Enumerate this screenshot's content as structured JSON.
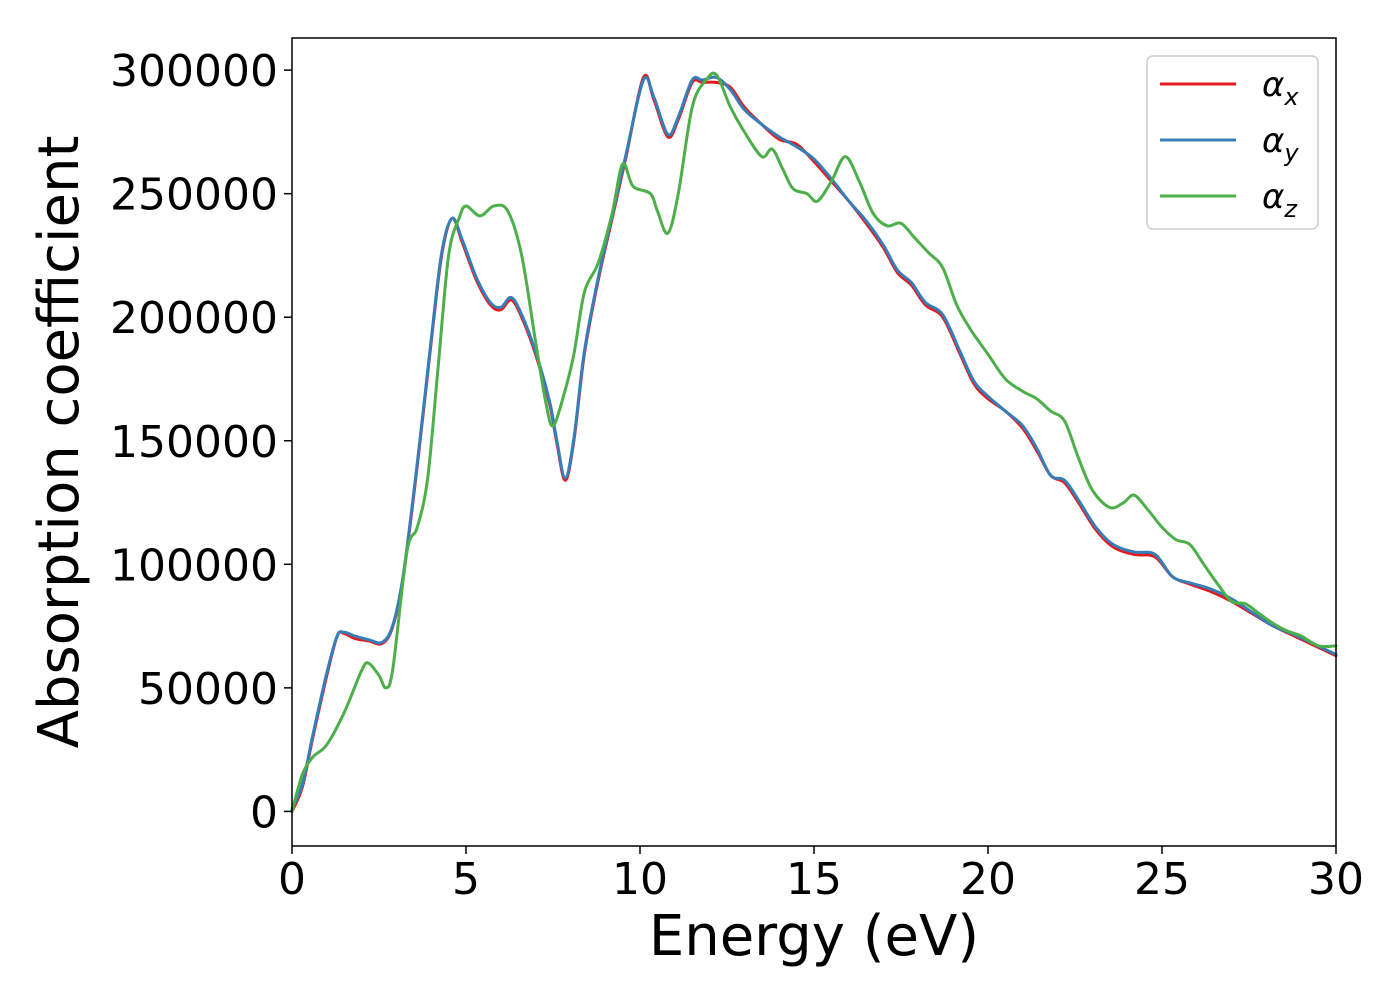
{
  "chart_data": {
    "type": "line",
    "title": "",
    "xlabel": "Energy (eV)",
    "ylabel": "Absorption coefficient",
    "xlim": [
      0,
      30
    ],
    "ylim": [
      -14000,
      313000
    ],
    "x_ticks": [
      0,
      5,
      10,
      15,
      20,
      25,
      30
    ],
    "x_tick_labels": [
      "0",
      "5",
      "10",
      "15",
      "20",
      "25",
      "30"
    ],
    "y_ticks": [
      0,
      50000,
      100000,
      150000,
      200000,
      250000,
      300000
    ],
    "y_tick_labels": [
      "0",
      "50000",
      "100000",
      "150000",
      "200000",
      "250000",
      "300000"
    ],
    "grid": false,
    "legend": "top-right",
    "series": [
      {
        "name": "α",
        "sub": "x",
        "color": "#e41a1c",
        "points": [
          [
            0,
            0
          ],
          [
            0.3,
            10000
          ],
          [
            0.6,
            30000
          ],
          [
            1,
            55000
          ],
          [
            1.3,
            71000
          ],
          [
            1.5,
            72000
          ],
          [
            1.8,
            70000
          ],
          [
            2.2,
            69000
          ],
          [
            2.6,
            68000
          ],
          [
            2.9,
            75000
          ],
          [
            3.2,
            95000
          ],
          [
            3.6,
            140000
          ],
          [
            4,
            190000
          ],
          [
            4.3,
            225000
          ],
          [
            4.6,
            240000
          ],
          [
            4.9,
            230000
          ],
          [
            5.3,
            215000
          ],
          [
            5.7,
            205000
          ],
          [
            6,
            203000
          ],
          [
            6.3,
            207000
          ],
          [
            6.6,
            200000
          ],
          [
            7,
            185000
          ],
          [
            7.4,
            165000
          ],
          [
            7.6,
            150000
          ],
          [
            7.85,
            134000
          ],
          [
            8.1,
            150000
          ],
          [
            8.4,
            185000
          ],
          [
            8.8,
            215000
          ],
          [
            9.2,
            240000
          ],
          [
            9.6,
            265000
          ],
          [
            10.1,
            297000
          ],
          [
            10.4,
            288000
          ],
          [
            10.8,
            273000
          ],
          [
            11.1,
            280000
          ],
          [
            11.5,
            295000
          ],
          [
            11.8,
            295000
          ],
          [
            12.2,
            295000
          ],
          [
            12.6,
            293000
          ],
          [
            13,
            285000
          ],
          [
            13.5,
            278000
          ],
          [
            14,
            272000
          ],
          [
            14.5,
            270000
          ],
          [
            15,
            263000
          ],
          [
            15.5,
            255000
          ],
          [
            16,
            247000
          ],
          [
            16.5,
            238000
          ],
          [
            17,
            228000
          ],
          [
            17.4,
            218000
          ],
          [
            17.8,
            213000
          ],
          [
            18.2,
            205000
          ],
          [
            18.7,
            200000
          ],
          [
            19.2,
            185000
          ],
          [
            19.6,
            173000
          ],
          [
            20,
            167000
          ],
          [
            20.5,
            162000
          ],
          [
            21,
            155000
          ],
          [
            21.4,
            146000
          ],
          [
            21.8,
            136000
          ],
          [
            22.2,
            133000
          ],
          [
            22.6,
            125000
          ],
          [
            23.1,
            114000
          ],
          [
            23.6,
            107000
          ],
          [
            24.2,
            104000
          ],
          [
            24.8,
            103000
          ],
          [
            25.3,
            95000
          ],
          [
            25.8,
            92000
          ],
          [
            26.4,
            89000
          ],
          [
            27,
            85000
          ],
          [
            27.6,
            80000
          ],
          [
            28.2,
            75000
          ],
          [
            28.8,
            71000
          ],
          [
            29.4,
            67000
          ],
          [
            30,
            63000
          ]
        ]
      },
      {
        "name": "α",
        "sub": "y",
        "color": "#377eb8",
        "points": [
          [
            0,
            1000
          ],
          [
            0.3,
            11000
          ],
          [
            0.6,
            31000
          ],
          [
            1,
            56000
          ],
          [
            1.3,
            71000
          ],
          [
            1.5,
            72500
          ],
          [
            1.8,
            71000
          ],
          [
            2.2,
            69500
          ],
          [
            2.6,
            68500
          ],
          [
            2.9,
            75500
          ],
          [
            3.2,
            96000
          ],
          [
            3.6,
            141000
          ],
          [
            4,
            191000
          ],
          [
            4.3,
            226000
          ],
          [
            4.6,
            240000
          ],
          [
            4.9,
            231000
          ],
          [
            5.3,
            216000
          ],
          [
            5.7,
            206000
          ],
          [
            6,
            204000
          ],
          [
            6.3,
            208000
          ],
          [
            6.6,
            201000
          ],
          [
            7,
            186000
          ],
          [
            7.4,
            166000
          ],
          [
            7.6,
            151000
          ],
          [
            7.85,
            135000
          ],
          [
            8.1,
            151000
          ],
          [
            8.4,
            186000
          ],
          [
            8.8,
            216000
          ],
          [
            9.2,
            241000
          ],
          [
            9.6,
            266000
          ],
          [
            10.1,
            296000
          ],
          [
            10.4,
            289000
          ],
          [
            10.8,
            274000
          ],
          [
            11.1,
            281000
          ],
          [
            11.5,
            296000
          ],
          [
            11.8,
            296000
          ],
          [
            12.2,
            297000
          ],
          [
            12.6,
            292000
          ],
          [
            13,
            284000
          ],
          [
            13.5,
            278000
          ],
          [
            14,
            273000
          ],
          [
            14.5,
            269000
          ],
          [
            15,
            264000
          ],
          [
            15.5,
            256000
          ],
          [
            16,
            247000
          ],
          [
            16.5,
            239000
          ],
          [
            17,
            229000
          ],
          [
            17.4,
            219000
          ],
          [
            17.8,
            214000
          ],
          [
            18.2,
            206000
          ],
          [
            18.7,
            201000
          ],
          [
            19.2,
            186000
          ],
          [
            19.6,
            174000
          ],
          [
            20,
            168000
          ],
          [
            20.5,
            162000
          ],
          [
            21,
            156000
          ],
          [
            21.4,
            147000
          ],
          [
            21.8,
            136000
          ],
          [
            22.2,
            134000
          ],
          [
            22.6,
            126000
          ],
          [
            23.1,
            115000
          ],
          [
            23.6,
            108000
          ],
          [
            24.2,
            105000
          ],
          [
            24.8,
            104000
          ],
          [
            25.3,
            95000
          ],
          [
            25.8,
            92500
          ],
          [
            26.4,
            90000
          ],
          [
            27,
            86000
          ],
          [
            27.6,
            80500
          ],
          [
            28.2,
            75000
          ],
          [
            28.8,
            71500
          ],
          [
            29.4,
            67500
          ],
          [
            30,
            63500
          ]
        ]
      },
      {
        "name": "α",
        "sub": "z",
        "color": "#4daf4a",
        "points": [
          [
            0,
            0
          ],
          [
            0.3,
            15000
          ],
          [
            0.6,
            22000
          ],
          [
            1,
            27000
          ],
          [
            1.5,
            40000
          ],
          [
            2,
            57000
          ],
          [
            2.2,
            60000
          ],
          [
            2.5,
            55000
          ],
          [
            2.7,
            50000
          ],
          [
            2.9,
            58000
          ],
          [
            3.3,
            105000
          ],
          [
            3.6,
            115000
          ],
          [
            3.9,
            135000
          ],
          [
            4.2,
            180000
          ],
          [
            4.5,
            225000
          ],
          [
            4.8,
            240000
          ],
          [
            5,
            245000
          ],
          [
            5.4,
            241000
          ],
          [
            5.8,
            245000
          ],
          [
            6.2,
            243000
          ],
          [
            6.6,
            225000
          ],
          [
            7,
            190000
          ],
          [
            7.3,
            165000
          ],
          [
            7.5,
            156000
          ],
          [
            7.8,
            168000
          ],
          [
            8.1,
            185000
          ],
          [
            8.4,
            210000
          ],
          [
            8.8,
            222000
          ],
          [
            9.2,
            242000
          ],
          [
            9.5,
            262000
          ],
          [
            9.8,
            253000
          ],
          [
            10.3,
            250000
          ],
          [
            10.5,
            243000
          ],
          [
            10.8,
            234000
          ],
          [
            11.1,
            250000
          ],
          [
            11.5,
            285000
          ],
          [
            11.9,
            296000
          ],
          [
            12.2,
            298000
          ],
          [
            12.6,
            285000
          ],
          [
            13,
            275000
          ],
          [
            13.5,
            265000
          ],
          [
            13.8,
            268000
          ],
          [
            14.1,
            260000
          ],
          [
            14.4,
            252000
          ],
          [
            14.8,
            250000
          ],
          [
            15.1,
            247000
          ],
          [
            15.5,
            255000
          ],
          [
            15.9,
            265000
          ],
          [
            16.3,
            255000
          ],
          [
            16.7,
            242000
          ],
          [
            17.1,
            237000
          ],
          [
            17.5,
            238000
          ],
          [
            17.9,
            232000
          ],
          [
            18.3,
            226000
          ],
          [
            18.7,
            220000
          ],
          [
            19.1,
            205000
          ],
          [
            19.5,
            195000
          ],
          [
            20,
            185000
          ],
          [
            20.5,
            175000
          ],
          [
            21,
            170000
          ],
          [
            21.4,
            167000
          ],
          [
            21.8,
            162000
          ],
          [
            22.2,
            158000
          ],
          [
            22.6,
            143000
          ],
          [
            23,
            130000
          ],
          [
            23.5,
            123000
          ],
          [
            23.9,
            125000
          ],
          [
            24.2,
            128000
          ],
          [
            24.6,
            122000
          ],
          [
            25,
            115000
          ],
          [
            25.4,
            110000
          ],
          [
            25.8,
            108000
          ],
          [
            26.2,
            100000
          ],
          [
            26.6,
            92000
          ],
          [
            27,
            85000
          ],
          [
            27.4,
            84000
          ],
          [
            27.8,
            80000
          ],
          [
            28.2,
            76000
          ],
          [
            28.6,
            73000
          ],
          [
            29,
            71000
          ],
          [
            29.5,
            67000
          ],
          [
            30,
            67000
          ]
        ]
      }
    ]
  }
}
